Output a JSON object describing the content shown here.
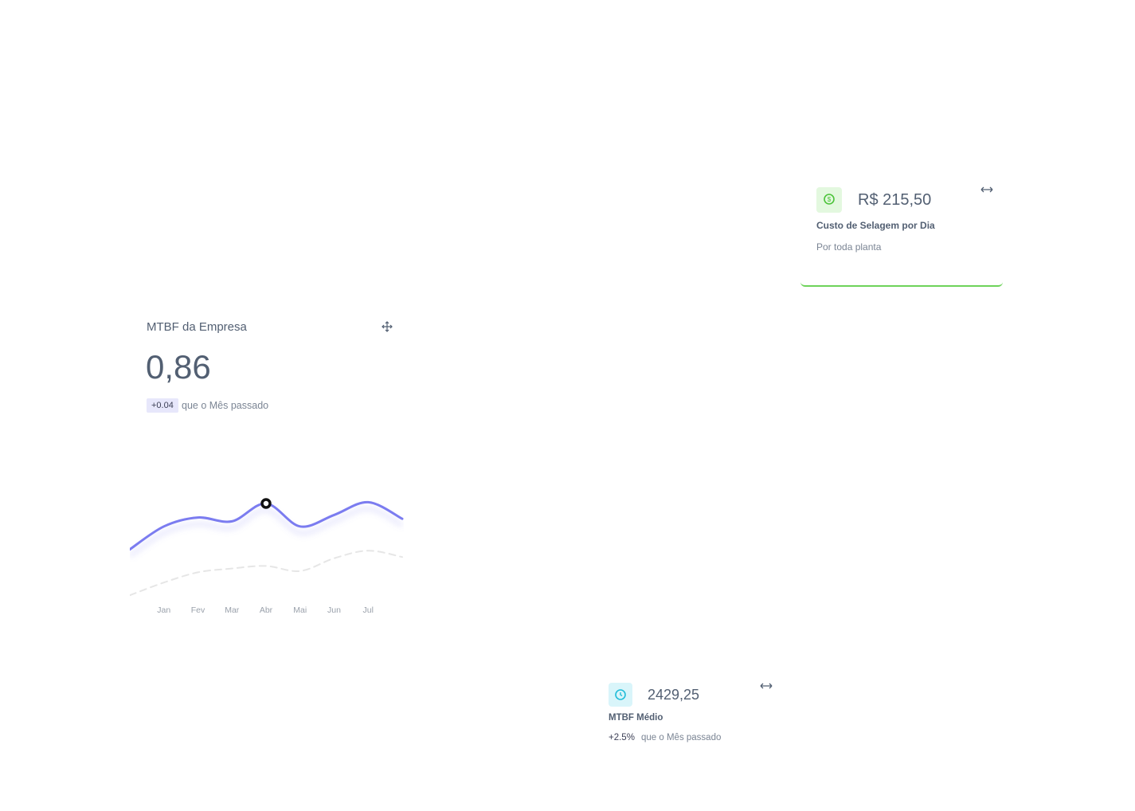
{
  "cost_card": {
    "value": "R$ 215,50",
    "label": "Custo de Selagem por Dia",
    "caption": "Por toda planta"
  },
  "mtbf_card": {
    "title": "MTBF da Empresa",
    "value": "0,86",
    "badge": "+0.04",
    "badge_text": "que o Mês passado"
  },
  "avg_card": {
    "value": "2429,25",
    "label": "MTBF Médio",
    "change": "+2.5%",
    "change_text": "que o Mês passado"
  },
  "chart_data": {
    "type": "line",
    "categories": [
      null,
      "Jan",
      "Fev",
      "Mar",
      "Abr",
      "Mai",
      "Jun",
      "Jul",
      null
    ],
    "series": [
      {
        "color": "#7b7cf0",
        "dashed": false,
        "values": [
          44,
          62,
          69,
          66,
          80,
          62,
          71,
          81,
          68
        ]
      },
      {
        "color": "#e6e6e6",
        "dashed": true,
        "values": [
          8,
          18,
          26,
          29,
          31,
          27,
          37,
          43,
          38
        ]
      }
    ],
    "ylim": [
      0,
      100
    ],
    "highlight_index": 4
  }
}
